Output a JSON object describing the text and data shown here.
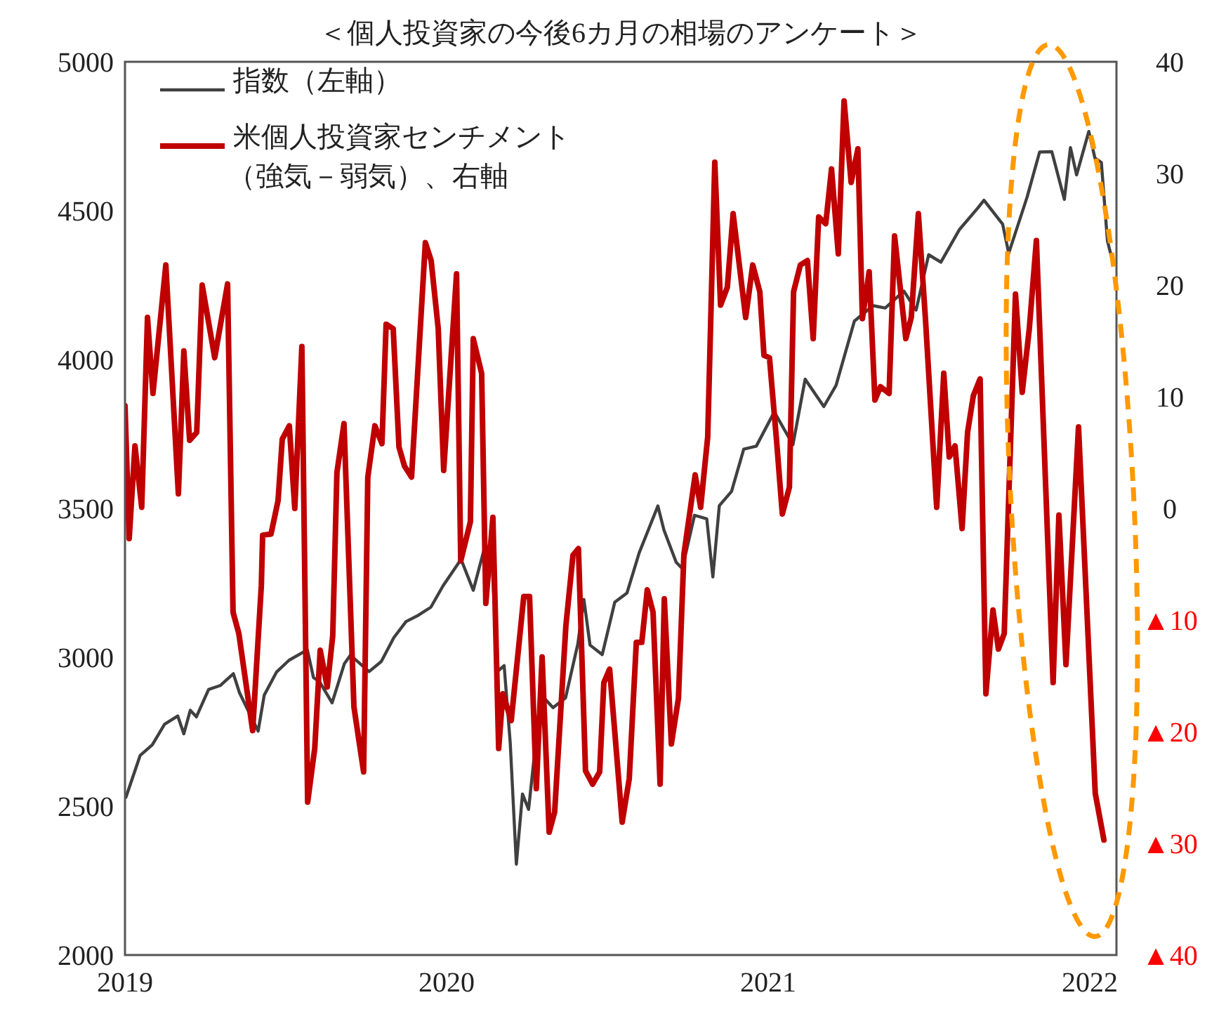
{
  "chart_data": {
    "type": "line",
    "title": "＜個人投資家の今後6カ月の相場のアンケート＞",
    "xlim": [
      2019,
      2022.083
    ],
    "xticks": [
      2019,
      2020,
      2021,
      2022
    ],
    "ylim": [
      2000,
      5000
    ],
    "yticks": [
      2000,
      2500,
      3000,
      3500,
      4000,
      4500,
      5000
    ],
    "y2lim": [
      -40,
      40
    ],
    "y2ticks": [
      {
        "value": -40,
        "label": "▲40"
      },
      {
        "value": -30,
        "label": "▲30"
      },
      {
        "value": -20,
        "label": "▲20"
      },
      {
        "value": -10,
        "label": "▲10"
      },
      0,
      10,
      20,
      30,
      40
    ],
    "legend": "top left",
    "grid": false,
    "series": [
      {
        "name": "指数（左軸）",
        "color": "#404040",
        "x": [
          2019.003,
          2019.047,
          2019.085,
          2019.123,
          2019.164,
          2019.183,
          2019.203,
          2019.222,
          2019.26,
          2019.296,
          2019.337,
          2019.356,
          2019.414,
          2019.433,
          2019.471,
          2019.51,
          2019.567,
          2019.586,
          2019.605,
          2019.644,
          2019.682,
          2019.701,
          2019.759,
          2019.797,
          2019.836,
          2019.874,
          2019.912,
          2019.951,
          2019.989,
          2020.045,
          2020.083,
          2020.121,
          2020.14,
          2020.16,
          2020.179,
          2020.198,
          2020.217,
          2020.236,
          2020.255,
          2020.293,
          2020.331,
          2020.37,
          2020.408,
          2020.427,
          2020.446,
          2020.484,
          2020.523,
          2020.561,
          2020.599,
          2020.657,
          2020.676,
          2020.714,
          2020.733,
          2020.771,
          2020.809,
          2020.828,
          2020.848,
          2020.886,
          2020.924,
          2020.963,
          2021.019,
          2021.077,
          2021.115,
          2021.173,
          2021.211,
          2021.268,
          2021.326,
          2021.364,
          2021.422,
          2021.46,
          2021.499,
          2021.537,
          2021.595,
          2021.652,
          2021.671,
          2021.729,
          2021.748,
          2021.805,
          2021.844,
          2021.882,
          2021.921,
          2021.94,
          2021.959,
          2021.997,
          2022.016,
          2022.036,
          2022.055,
          2022.071
        ],
        "values": [
          2530,
          2670,
          2706,
          2775,
          2803,
          2743,
          2822,
          2800,
          2892,
          2905,
          2945,
          2881,
          2752,
          2873,
          2950,
          2990,
          3025,
          2932,
          2918,
          2847,
          2978,
          3007,
          2952,
          2986,
          3066,
          3120,
          3141,
          3168,
          3240,
          3329,
          3225,
          3380,
          3337,
          2954,
          2972,
          2711,
          2305,
          2541,
          2489,
          2875,
          2831,
          2864,
          3044,
          3194,
          3041,
          3009,
          3185,
          3216,
          3351,
          3508,
          3427,
          3319,
          3298,
          3477,
          3465,
          3270,
          3509,
          3557,
          3699,
          3709,
          3824,
          3714,
          3934,
          3842,
          3913,
          4129,
          4181,
          4173,
          4230,
          4166,
          4352,
          4327,
          4437,
          4509,
          4535,
          4455,
          4357,
          4545,
          4697,
          4698,
          4538,
          4712,
          4620,
          4766,
          4677,
          4662,
          4398,
          4330
        ]
      },
      {
        "name": "米個人投資家センチメント（強気－弱気）、右軸",
        "color": "#c00000",
        "axis": "y2",
        "x": [
          2019,
          2019.013,
          2019.031,
          2019.052,
          2019.07,
          2019.087,
          2019.127,
          2019.166,
          2019.183,
          2019.201,
          2019.223,
          2019.24,
          2019.279,
          2019.319,
          2019.336,
          2019.354,
          2019.397,
          2019.424,
          2019.428,
          2019.454,
          2019.476,
          2019.489,
          2019.511,
          2019.528,
          2019.55,
          2019.568,
          2019.59,
          2019.607,
          2019.629,
          2019.646,
          2019.659,
          2019.681,
          2019.712,
          2019.742,
          2019.755,
          2019.777,
          2019.799,
          2019.812,
          2019.834,
          2019.852,
          2019.869,
          2019.891,
          2019.934,
          2019.952,
          2019.974,
          2019.991,
          2020.031,
          2020.044,
          2020.074,
          2020.083,
          2020.109,
          2020.122,
          2020.144,
          2020.148,
          2020.162,
          2020.175,
          2020.201,
          2020.24,
          2020.258,
          2020.279,
          2020.297,
          2020.319,
          2020.336,
          2020.371,
          2020.393,
          2020.41,
          2020.432,
          2020.454,
          2020.476,
          2020.489,
          2020.507,
          2020.546,
          2020.568,
          2020.59,
          2020.607,
          2020.624,
          2020.642,
          2020.664,
          2020.677,
          2020.699,
          2020.721,
          2020.738,
          2020.773,
          2020.79,
          2020.812,
          2020.834,
          2020.852,
          2020.873,
          2020.891,
          2020.93,
          2020.952,
          2020.974,
          2020.987,
          2021.004,
          2021.026,
          2021.044,
          2021.066,
          2021.079,
          2021.1,
          2021.122,
          2021.14,
          2021.157,
          2021.179,
          2021.197,
          2021.218,
          2021.236,
          2021.258,
          2021.279,
          2021.293,
          2021.314,
          2021.332,
          2021.349,
          2021.376,
          2021.393,
          2021.428,
          2021.445,
          2021.467,
          2021.489,
          2021.524,
          2021.546,
          2021.563,
          2021.581,
          2021.603,
          2021.62,
          2021.638,
          2021.659,
          2021.677,
          2021.699,
          2021.716,
          2021.734,
          2021.769,
          2021.79,
          2021.812,
          2021.834,
          2021.886,
          2021.904,
          2021.926,
          2021.965,
          2022.017,
          2022.044
        ],
        "values": [
          9.2,
          -2.7,
          5.6,
          0.1,
          17.1,
          10.3,
          21.8,
          1.3,
          14.1,
          6.1,
          6.8,
          20,
          13.5,
          20.1,
          -9.3,
          -11.2,
          -19.9,
          -6.9,
          -2.4,
          -2.3,
          0.7,
          6.2,
          7.4,
          0,
          14.5,
          -26.3,
          -21.5,
          -12.7,
          -16,
          -11.4,
          3.2,
          7.6,
          -17.8,
          -23.6,
          2.8,
          7.4,
          5.8,
          16.5,
          16.1,
          5.5,
          3.8,
          2.8,
          23.8,
          22.2,
          16.1,
          3.4,
          21,
          -4.7,
          -1.2,
          15.2,
          12.1,
          -8.5,
          -0.8,
          -5.3,
          -21.5,
          -16.6,
          -19,
          -7.9,
          -7.9,
          -25.1,
          -13.3,
          -29,
          -27.2,
          -10.5,
          -4.2,
          -3.6,
          -23.5,
          -24.7,
          -23.6,
          -15.6,
          -14.4,
          -28.1,
          -24.2,
          -12,
          -12,
          -7.3,
          -9.3,
          -24.7,
          -8.1,
          -21.1,
          -17,
          -4.1,
          3,
          0.1,
          6.4,
          31,
          18.2,
          19.8,
          26.4,
          17.1,
          21.8,
          19.4,
          13.7,
          13.5,
          6.1,
          -0.5,
          1.9,
          19.4,
          21.8,
          22.2,
          15.2,
          26.1,
          25.5,
          30.4,
          22.8,
          36.5,
          29.2,
          32.2,
          17,
          21.2,
          9.7,
          10.9,
          10.3,
          24.4,
          15.2,
          17.1,
          26.4,
          17,
          0.1,
          12.1,
          4.6,
          5.6,
          -1.8,
          6.8,
          10.1,
          11.6,
          -16.6,
          -9.1,
          -12.6,
          -11.2,
          19.2,
          10.4,
          16.1,
          24,
          -15.6,
          -0.6,
          -14,
          7.3,
          -25.5,
          -29.7
        ]
      }
    ]
  }
}
